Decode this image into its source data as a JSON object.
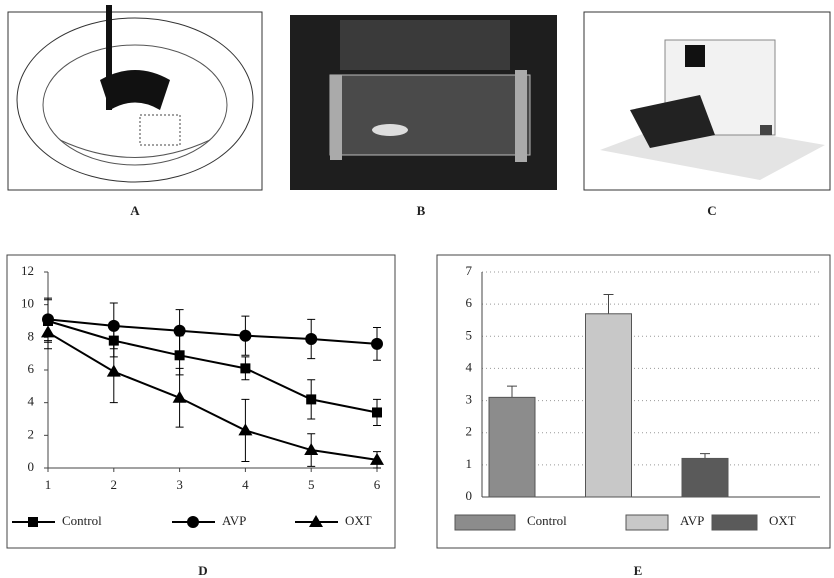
{
  "panel_labels": [
    "A",
    "B",
    "C",
    "D",
    "E"
  ],
  "chart_data": [
    {
      "type": "line",
      "x": [
        1,
        2,
        3,
        4,
        5,
        6
      ],
      "xlim": [
        1,
        6
      ],
      "xticks": [
        1,
        2,
        3,
        4,
        5,
        6
      ],
      "ylim": [
        0,
        12
      ],
      "yticks": [
        0,
        2,
        4,
        6,
        8,
        10,
        12
      ],
      "grid": false,
      "series": [
        {
          "name": "Control",
          "color": "#000000",
          "marker": "square",
          "values": [
            9.0,
            7.8,
            6.9,
            6.1,
            4.2,
            3.4
          ],
          "errors": [
            1.3,
            1.0,
            1.2,
            0.7,
            1.2,
            0.8
          ]
        },
        {
          "name": "AVP",
          "color": "#000000",
          "marker": "circle",
          "values": [
            9.1,
            8.7,
            8.4,
            8.1,
            7.9,
            7.6
          ],
          "errors": [
            1.3,
            1.4,
            1.3,
            1.2,
            1.2,
            1.0
          ]
        },
        {
          "name": "OXT",
          "color": "#000000",
          "marker": "triangle",
          "values": [
            8.3,
            5.9,
            4.3,
            2.3,
            1.1,
            0.5
          ],
          "errors": [
            1.0,
            1.9,
            1.8,
            1.9,
            1.0,
            0.5
          ]
        }
      ]
    },
    {
      "type": "bar",
      "ylim": [
        0,
        7
      ],
      "yticks": [
        0,
        1,
        2,
        3,
        4,
        5,
        6,
        7
      ],
      "grid": true,
      "series": [
        {
          "name": "Control",
          "color": "#8c8c8c",
          "values": [
            3.1
          ],
          "errors": [
            0.35
          ]
        },
        {
          "name": "AVP",
          "color": "#c8c8c8",
          "values": [
            5.7
          ],
          "errors": [
            0.6
          ]
        },
        {
          "name": "OXT",
          "color": "#5a5a5a",
          "values": [
            1.2
          ],
          "errors": [
            0.15
          ]
        }
      ]
    }
  ]
}
